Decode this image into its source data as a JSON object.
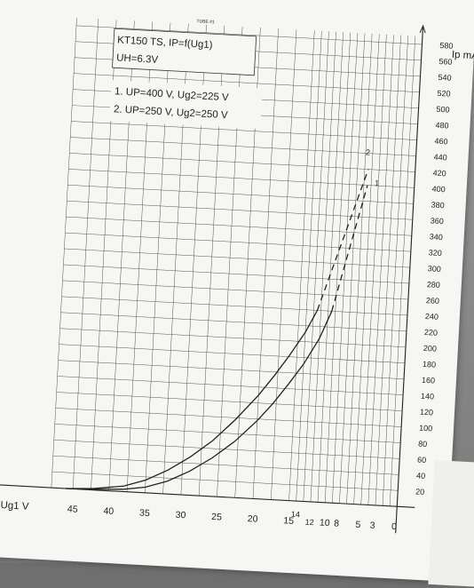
{
  "header_stamp": "TUBE #1",
  "chart_data": {
    "type": "line",
    "title": "KT150 TS, IP=f(Ug1)",
    "heater": "UH=6.3V",
    "legend": [
      "1.  UP=400 V, Ug2=225 V",
      "2.  UP=250 V, Ug2=250 V"
    ],
    "ylabel": "Ip mA",
    "xlabel": "-Ug1 V",
    "xlim": [
      48,
      0
    ],
    "ylim": [
      0,
      590
    ],
    "y_ticks": [
      20,
      40,
      60,
      80,
      100,
      120,
      140,
      160,
      180,
      200,
      220,
      240,
      260,
      280,
      300,
      320,
      340,
      360,
      380,
      400,
      420,
      440,
      460,
      480,
      500,
      520,
      540,
      560,
      580
    ],
    "x_ticks": [
      {
        "v": 45,
        "label": "45"
      },
      {
        "v": 40,
        "label": "40"
      },
      {
        "v": 35,
        "label": "35"
      },
      {
        "v": 30,
        "label": "30"
      },
      {
        "v": 25,
        "label": "25"
      },
      {
        "v": 20,
        "label": "20"
      },
      {
        "v": 15,
        "label": "15"
      },
      {
        "v": 14,
        "label": "14"
      },
      {
        "v": 12,
        "label": "12"
      },
      {
        "v": 10,
        "label": "10"
      },
      {
        "v": 8,
        "label": "8"
      },
      {
        "v": 5,
        "label": "5"
      },
      {
        "v": 3,
        "label": "3"
      },
      {
        "v": 0,
        "label": "0"
      }
    ],
    "series": [
      {
        "name": "1",
        "x": [
          46,
          42,
          38,
          35,
          32,
          29,
          26,
          23,
          20,
          18,
          16,
          14,
          12,
          10.5
        ],
        "y": [
          0,
          1,
          3,
          7,
          16,
          30,
          48,
          70,
          98,
          120,
          145,
          172,
          205,
          240
        ],
        "dashed_x": [
          10.5,
          9.5,
          8.5,
          7.5,
          6.5
        ],
        "dashed_y": [
          240,
          280,
          320,
          360,
          400
        ]
      },
      {
        "name": "2",
        "x": [
          46,
          42,
          38,
          35,
          32,
          29,
          26,
          23,
          20,
          18,
          16,
          14,
          12.5
        ],
        "y": [
          0,
          2,
          7,
          16,
          30,
          48,
          70,
          98,
          130,
          155,
          182,
          212,
          240
        ],
        "dashed_x": [
          12.5,
          11,
          9.5,
          8,
          6.5
        ],
        "dashed_y": [
          240,
          285,
          330,
          375,
          420
        ]
      }
    ]
  }
}
